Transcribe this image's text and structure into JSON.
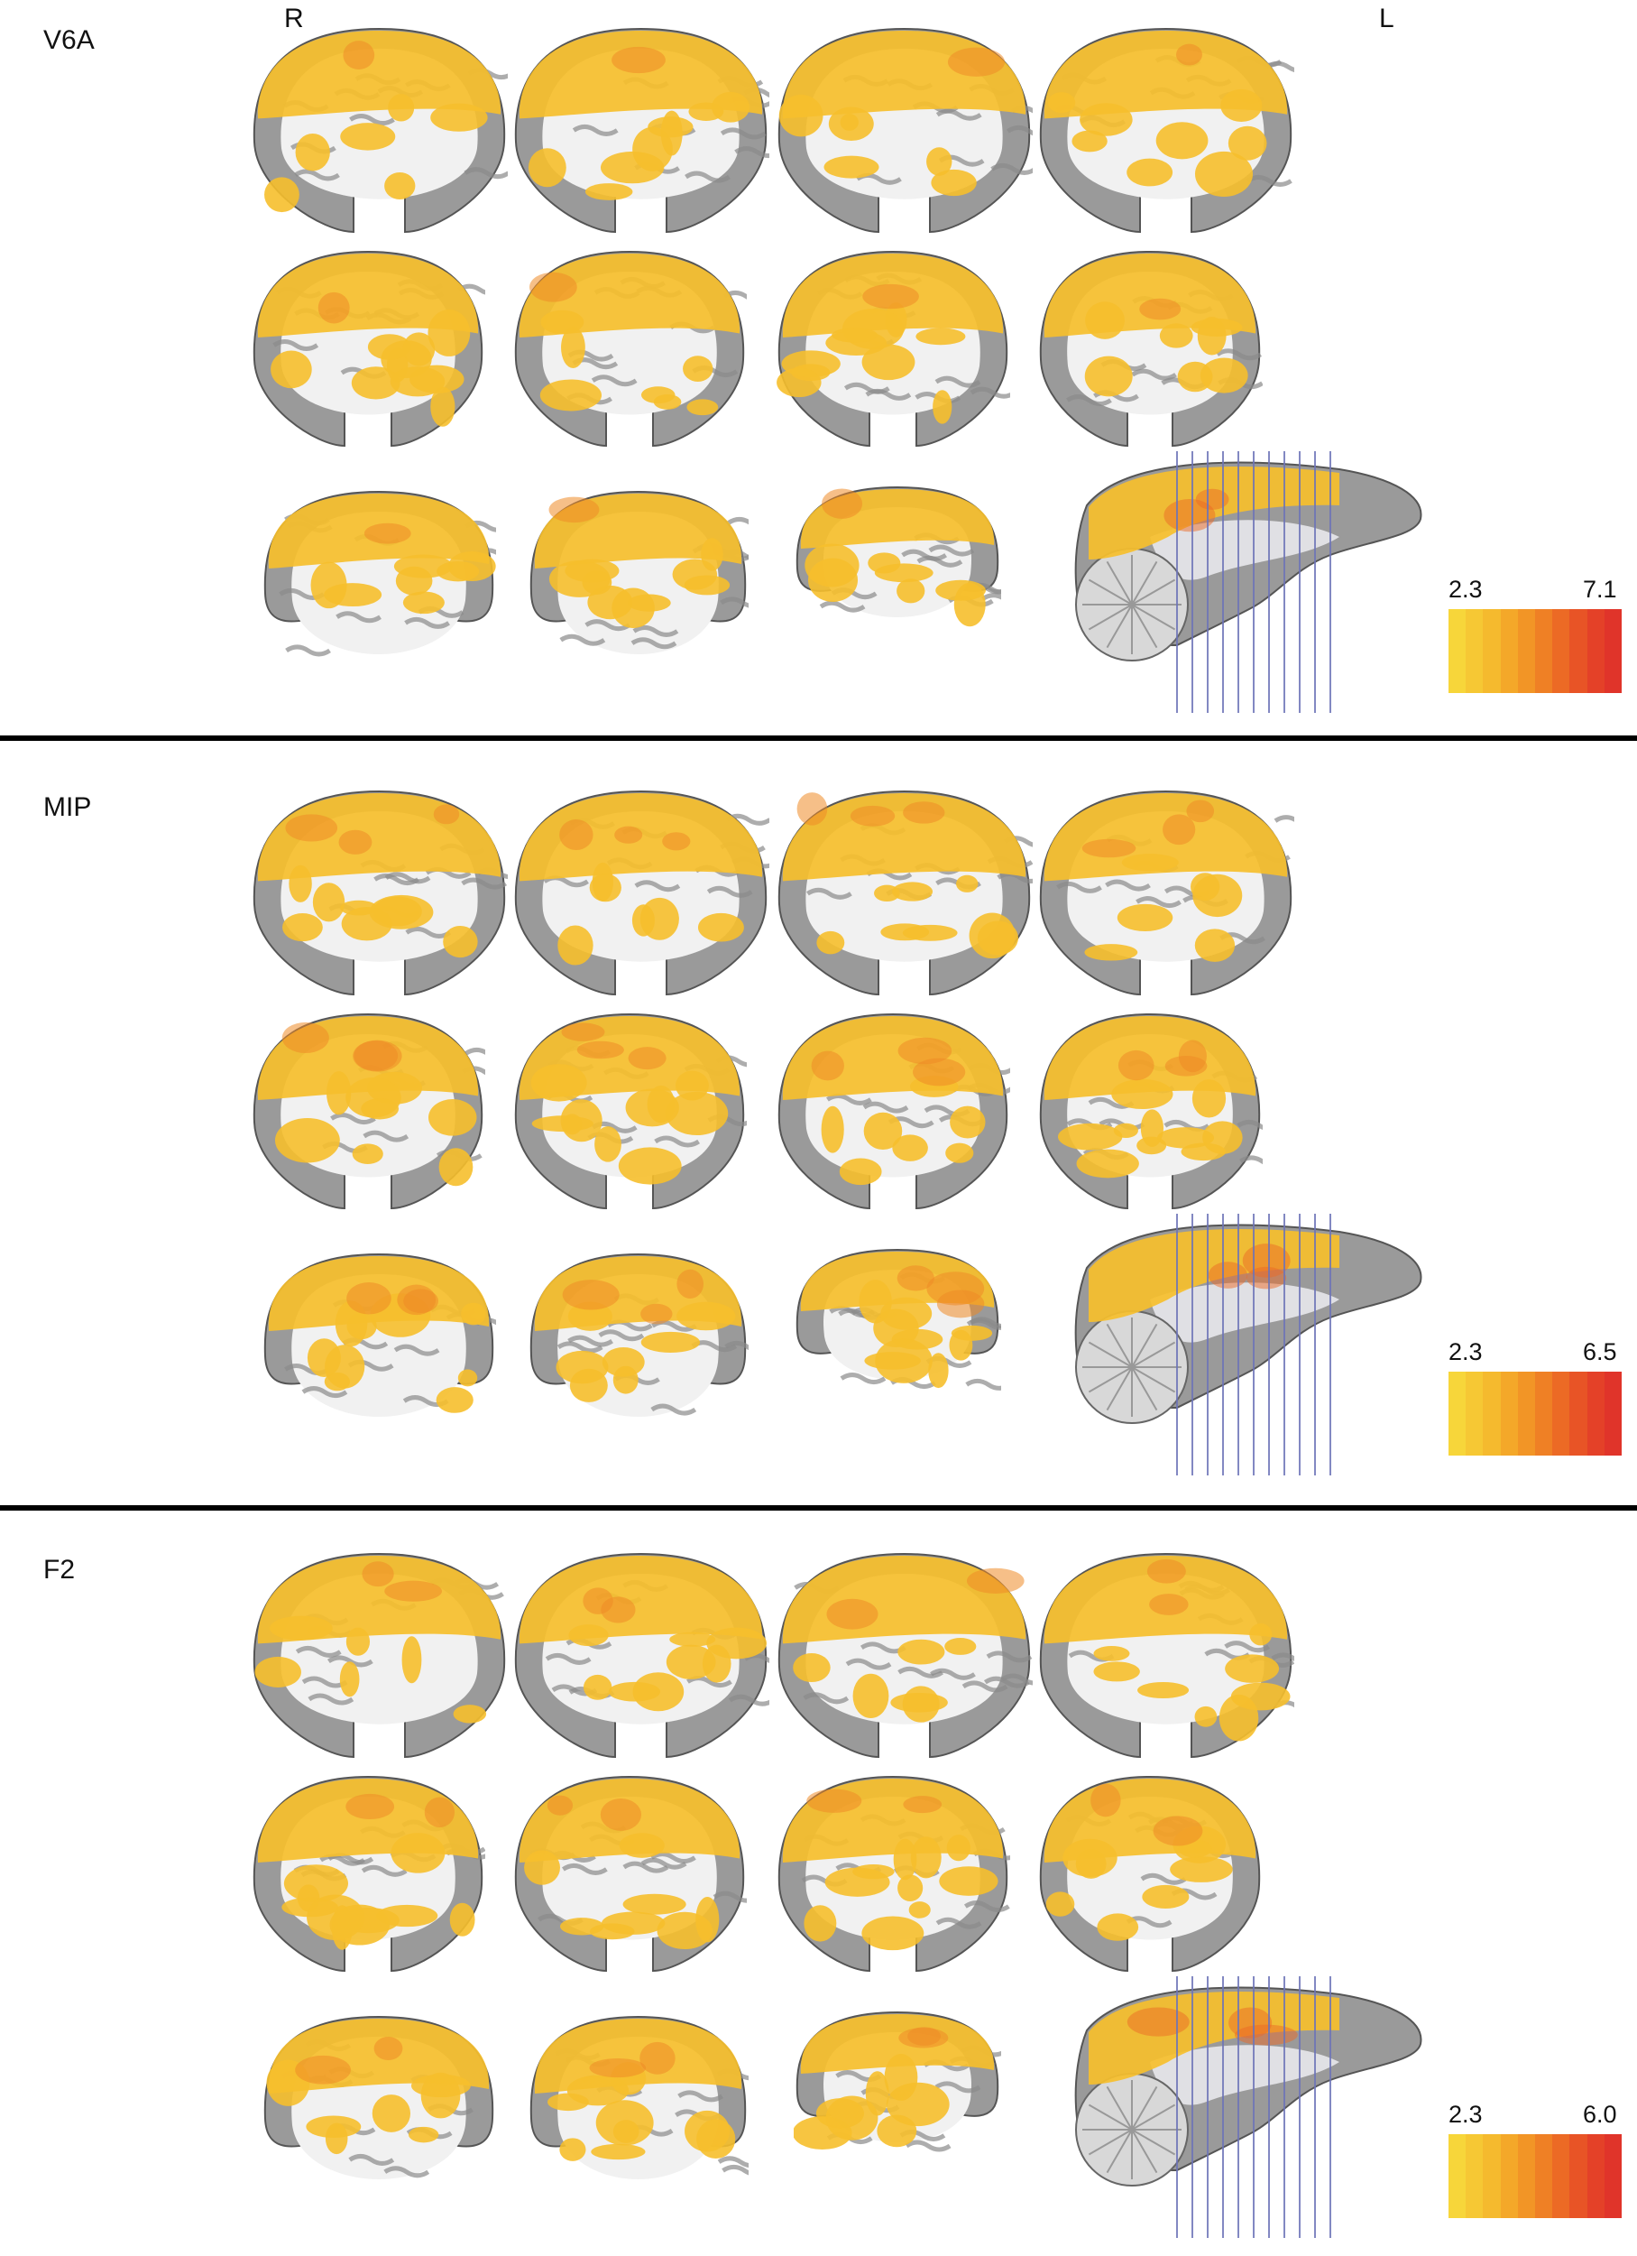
{
  "orientation": {
    "right": "R",
    "left": "L"
  },
  "panels": [
    {
      "label": "V6A",
      "scale_min": "2.3",
      "scale_max": "7.1",
      "intensity": 0.35
    },
    {
      "label": "MIP",
      "scale_min": "2.3",
      "scale_max": "6.5",
      "intensity": 0.6
    },
    {
      "label": "F2",
      "scale_min": "2.3",
      "scale_max": "6.0",
      "intensity": 0.55
    }
  ],
  "colors": {
    "colorbar": [
      "#f7d63a",
      "#f6c834",
      "#f5ba2e",
      "#f4a829",
      "#f29526",
      "#ef8025",
      "#ec6a25",
      "#e85426",
      "#e44128",
      "#e0342a"
    ],
    "brain_gray": "#9a9a9a",
    "white_matter": "#f1f1f1",
    "activation": "#f6bf2c",
    "slice_marker": "#6d74b8"
  }
}
